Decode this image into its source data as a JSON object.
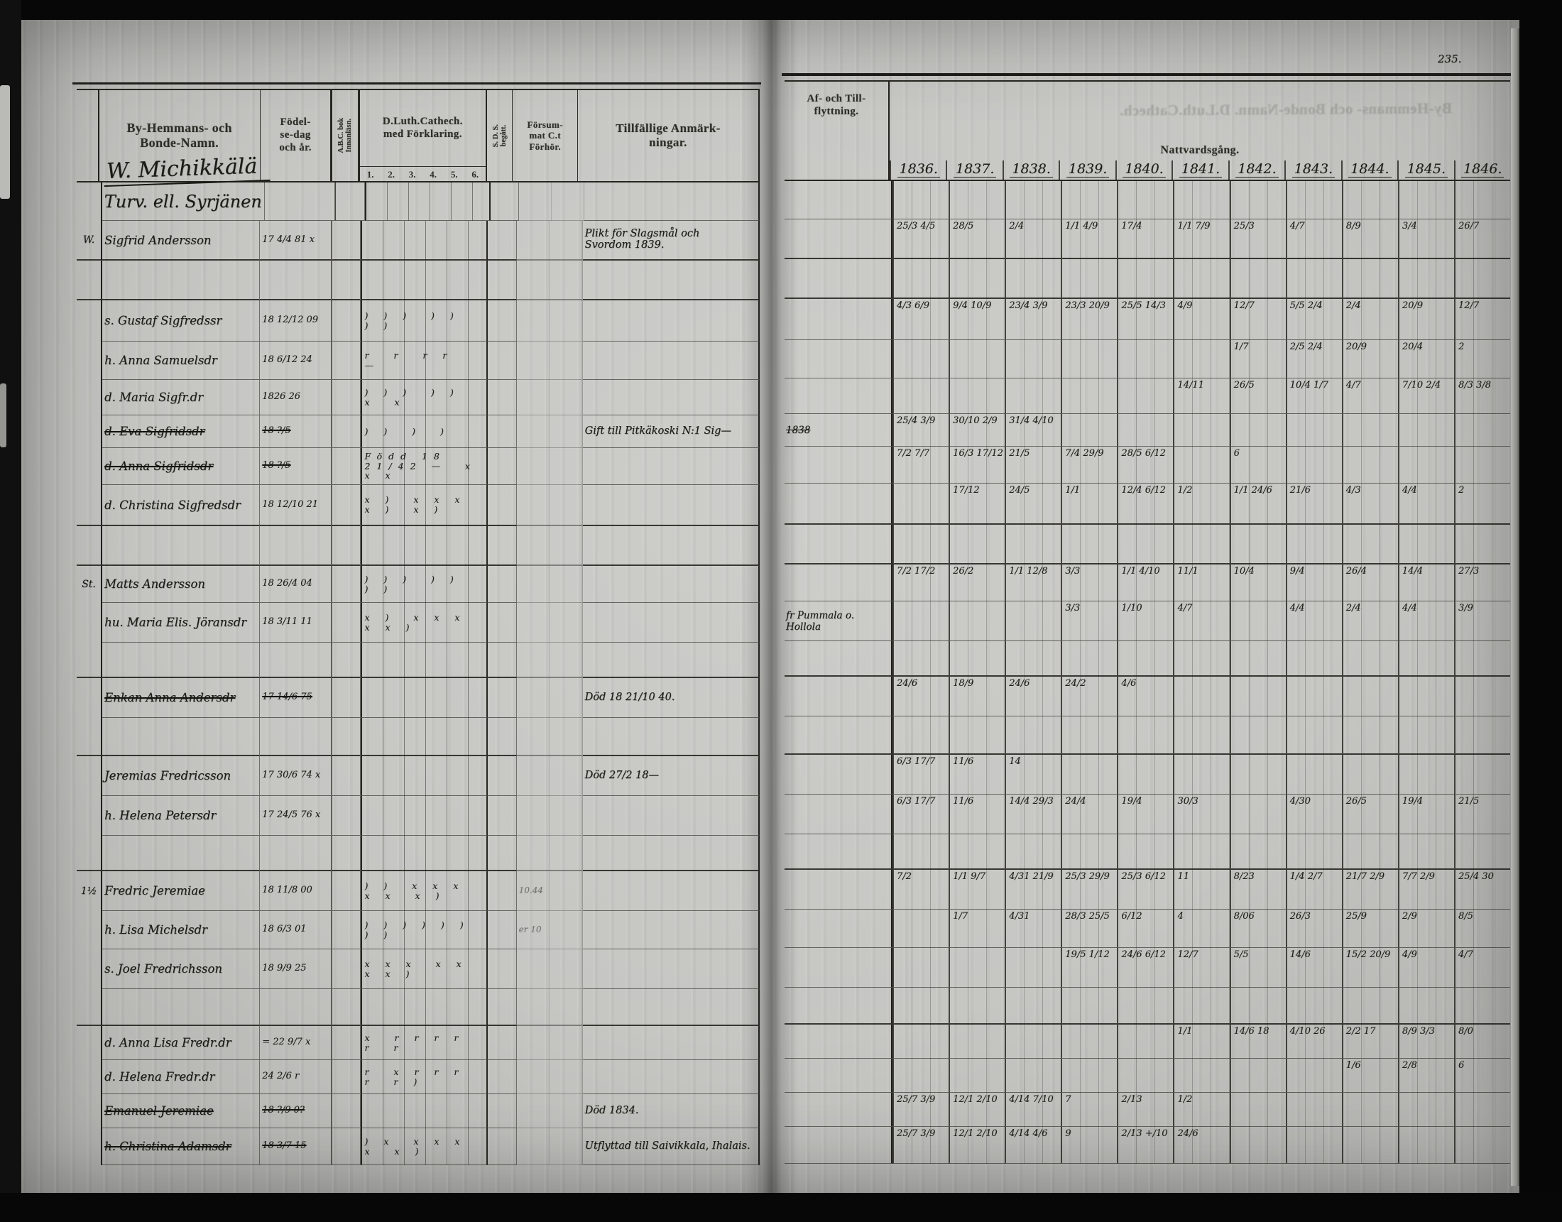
{
  "page": {
    "number": "235."
  },
  "left": {
    "title": "W. Michikkälä",
    "h_name": "By-Hemmans- och\nBonde-Namn.",
    "h_birth": "Födel-\nse-dag\noch år.",
    "h_abc": "A.B.C. bok\nInnanläsn.",
    "h_cat": "D.Luth.Cathech.\nmed Förklaring.",
    "cat_nums": [
      "1.",
      "2.",
      "3.",
      "4.",
      "5.",
      "6."
    ],
    "h_sds": "S. D. S.\nbegått.",
    "h_forhor": "Försum-\nmat C.t\nFörhör.",
    "h_remark": "Tillfällige Anmärk-\nningar."
  },
  "right": {
    "h_aftill": "Af- och Till-\nflyttning.",
    "h_natt": "Nattvardsgång.",
    "years": [
      "1836.",
      "1837.",
      "1838.",
      "1839.",
      "1840.",
      "1841.",
      "1842.",
      "1843.",
      "1844.",
      "1845.",
      "1846."
    ],
    "bleed": "By-Hemmans- och  Bonde-Namn.   D.Luth.Cathech."
  },
  "rows": [
    {
      "type": "group",
      "h": 54,
      "name": "Turv. ell. Syrjänen"
    },
    {
      "type": "entry",
      "h": 56,
      "sep": true,
      "margin": "W.",
      "name": "Sigfrid Andersson",
      "birth": "17 4/4 81 x",
      "remark": "Plikt för Slagsmål och\nSvordom 1839.",
      "natt": [
        "25/3 4/5",
        "28/5",
        "2/4",
        "1/1 4/9",
        "17/4",
        "1/1 7/9",
        "25/3",
        "4/7",
        "8/9",
        "3/4",
        "26/7"
      ]
    },
    {
      "type": "blank",
      "h": 56,
      "sep": true
    },
    {
      "type": "entry",
      "h": 58,
      "name": "s. Gustaf Sigfredssr",
      "birth": "18 12/12 09",
      "cat": ") ) )  ) )  ) )",
      "natt": [
        "4/3 6/9",
        "9/4 10/9",
        "23/4 3/9",
        "23/3 20/9",
        "25/5 14/3",
        "4/9",
        "12/7",
        "5/5 2/4",
        "2/4",
        "20/9",
        "12/7"
      ]
    },
    {
      "type": "entry",
      "h": 54,
      "name": "h. Anna Samuelsdr",
      "birth": "18 6/12 24",
      "cat": "r  r  r r  —",
      "natt": [
        "",
        "",
        "",
        "",
        "",
        "",
        "1/7",
        "2/5 2/4",
        "20/9",
        "20/4",
        "2"
      ]
    },
    {
      "type": "entry",
      "h": 50,
      "name": "d. Maria Sigfr.dr",
      "birth": "1826 26",
      "cat": ") ) )  ) )  x  x",
      "natt": [
        "",
        "",
        "",
        "",
        "",
        "14/11",
        "26/5",
        "10/4 1/7",
        "4/7",
        "7/10 2/4",
        "8/3 3/8"
      ]
    },
    {
      "type": "entry",
      "h": 46,
      "struck": true,
      "name": "d. Eva Sigfridsdr",
      "birth": "18 ?/5",
      "cat": ") )  )  )",
      "aftill": "1838",
      "remark": "Gift till Pitkäkoski N:1 Sig—",
      "natt": [
        "25/4 3/9",
        "30/10 2/9",
        "31/4 4/10",
        "",
        "",
        "",
        "",
        "",
        "",
        "",
        ""
      ]
    },
    {
      "type": "entry",
      "h": 52,
      "struck": true,
      "name": "d. Anna Sigfridsdr",
      "birth": "18 ?/5",
      "cat": "Född 18 21/42 —  x x x",
      "natt": [
        "7/2 7/7",
        "16/3 17/12",
        "21/5",
        "7/4 29/9",
        "28/5 6/12",
        "",
        "6",
        "",
        "",
        "",
        ""
      ]
    },
    {
      "type": "entry",
      "h": 58,
      "sep": true,
      "name": "d. Christina Sigfredsdr",
      "birth": "18 12/10 21",
      "cat": "x )  x x x x )  x )",
      "natt": [
        "",
        "17/12",
        "24/5",
        "1/1",
        "12/4 6/12",
        "1/2",
        "1/1 24/6",
        "21/6",
        "4/3",
        "4/4",
        "2"
      ]
    },
    {
      "type": "blank",
      "h": 56,
      "sep": true
    },
    {
      "type": "entry",
      "h": 52,
      "margin": "St.",
      "name": "Matts Andersson",
      "birth": "18 26/4 04",
      "cat": ") ) )  ) )  ) )",
      "natt": [
        "7/2 17/2",
        "26/2",
        "1/1 12/8",
        "3/3",
        "1/1 4/10",
        "11/1",
        "10/4",
        "9/4",
        "26/4",
        "14/4",
        "27/3"
      ]
    },
    {
      "type": "entry",
      "h": 56,
      "name": "hu. Maria Elis. Jöransdr",
      "birth": "18 3/11 11",
      "cat": "x )  x x x x x )",
      "aftill": "fr Pummala o. Hollola",
      "natt": [
        "",
        "",
        "",
        "3/3",
        "1/10",
        "4/7",
        "",
        "4/4",
        "2/4",
        "4/4",
        "3/9"
      ]
    },
    {
      "type": "blank",
      "h": 50,
      "sep": true
    },
    {
      "type": "entry",
      "h": 56,
      "struck": true,
      "name": "Enkan Anna Andersdr",
      "birth": "17 14/6 75",
      "remark": "Död 18 21/10 40.",
      "natt": [
        "24/6",
        "18/9",
        "24/6",
        "24/2",
        "4/6",
        "",
        "",
        "",
        "",
        "",
        ""
      ]
    },
    {
      "type": "blank",
      "h": 54,
      "sep": true
    },
    {
      "type": "entry",
      "h": 56,
      "name": "Jeremias Fredricsson",
      "birth": "17 30/6 74 x",
      "remark": "Död 27/2 18—",
      "natt": [
        "6/3 17/7",
        "11/6",
        "14",
        "",
        "",
        "",
        "",
        "",
        "",
        "",
        ""
      ]
    },
    {
      "type": "entry",
      "h": 56,
      "name": "h. Helena Petersdr",
      "birth": "17 24/5 76 x",
      "natt": [
        "6/3 17/7",
        "11/6",
        "14/4 29/3",
        "24/4",
        "19/4",
        "30/3",
        "",
        "4/30",
        "26/5",
        "19/4",
        "21/5"
      ]
    },
    {
      "type": "blank",
      "h": 50,
      "sep": true
    },
    {
      "type": "entry",
      "h": 56,
      "margin": "1½",
      "name": "Fredric Jeremiae",
      "birth": "18 11/8 00",
      "cat": ") )  x x x x x  x )",
      "forhor": "10.44",
      "natt": [
        "7/2",
        "1/1 9/7",
        "4/31 21/9",
        "25/3 29/9",
        "25/3 6/12",
        "11",
        "8/23",
        "1/4 2/7",
        "21/7 2/9",
        "7/7 2/9",
        "25/4 30"
      ]
    },
    {
      "type": "entry",
      "h": 54,
      "name": "h. Lisa Michelsdr",
      "birth": "18 6/3 01",
      "cat": ") ) ) ) ) ) ) )",
      "forhor": "er 10",
      "natt": [
        "",
        "1/7",
        "4/31",
        "28/3 25/5",
        "6/12",
        "4",
        "8/06",
        "26/3",
        "25/9",
        "2/9",
        "8/5"
      ]
    },
    {
      "type": "entry",
      "h": 56,
      "name": "s. Joel Fredrichsson",
      "birth": "18 9/9 25",
      "cat": "x x x  x x x x )",
      "natt": [
        "",
        "",
        "",
        "19/5 1/12",
        "24/6 6/12",
        "12/7",
        "5/5",
        "14/6",
        "15/2 20/9",
        "4/9",
        "4/7"
      ]
    },
    {
      "type": "blank",
      "h": 52,
      "sep": true
    },
    {
      "type": "entry",
      "h": 48,
      "name": "d. Anna Lisa Fredr.dr",
      "birth": "= 22 9/7 x",
      "cat": "x  r r r r  r  r",
      "natt": [
        "",
        "",
        "",
        "",
        "",
        "1/1",
        "14/6 18",
        "4/10 26",
        "2/2 17",
        "8/9 3/3",
        "8/0"
      ]
    },
    {
      "type": "entry",
      "h": 48,
      "name": "d. Helena Fredr.dr",
      "birth": "24 2/6 r",
      "cat": "r  x r r r r  r )",
      "natt": [
        "",
        "",
        "",
        "",
        "",
        "",
        "",
        "",
        "1/6",
        "2/8",
        "6"
      ]
    },
    {
      "type": "entry",
      "h": 48,
      "struck": true,
      "name": "Emanuel Jeremiae",
      "birth": "18 ?/9 0?",
      "remark": "Död 1834.",
      "natt": [
        "25/7 3/9",
        "12/1 2/10",
        "4/14 7/10",
        "7",
        "2/13",
        "1/2",
        "",
        "",
        "",
        "",
        ""
      ]
    },
    {
      "type": "entry",
      "h": 52,
      "struck": true,
      "name": "h. Christina Adamsdr",
      "birth": "18 3/7 15",
      "cat": ") x  x x x x  x )",
      "remark": "Utflyttad till Saivikkala, Ihalais.",
      "natt": [
        "25/7 3/9",
        "12/1 2/10",
        "4/14 4/6",
        "9",
        "2/13 +/10",
        "24/6",
        "",
        "",
        "",
        "",
        ""
      ]
    }
  ]
}
